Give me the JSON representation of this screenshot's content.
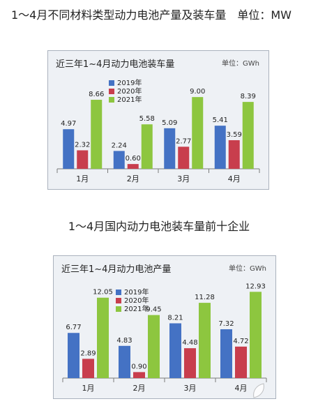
{
  "page": {
    "heading": "1～4月不同材料类型动力电池产量及装车量",
    "heading_unit": "单位：MW",
    "subheading": "1～4月国内动力电池装车量前十企业"
  },
  "colors": {
    "s2019": "#4472c4",
    "s2020": "#c83e4d",
    "s2021": "#8dc63f"
  },
  "chart_data": [
    {
      "type": "bar",
      "title": "近三年1~4月动力电池装车量",
      "unit": "单位：GWh",
      "categories": [
        "1月",
        "2月",
        "3月",
        "4月"
      ],
      "series": [
        {
          "name": "2019年",
          "values": [
            4.97,
            2.24,
            5.09,
            5.41
          ]
        },
        {
          "name": "2020年",
          "values": [
            2.32,
            0.6,
            2.77,
            3.59
          ]
        },
        {
          "name": "2021年",
          "values": [
            8.66,
            5.58,
            9.0,
            8.39
          ]
        }
      ],
      "legend": "top-left",
      "grid": false
    },
    {
      "type": "bar",
      "title": "近三年1~4月动力电池产量",
      "unit": "单位：GWh",
      "categories": [
        "1月",
        "2月",
        "3月",
        "4月"
      ],
      "series": [
        {
          "name": "2019年",
          "values": [
            6.77,
            4.83,
            8.21,
            7.32
          ]
        },
        {
          "name": "2020年",
          "values": [
            2.89,
            0.9,
            4.48,
            4.72
          ]
        },
        {
          "name": "2021年",
          "values": [
            12.05,
            9.45,
            11.28,
            12.93
          ]
        }
      ],
      "legend": "top-left",
      "grid": false
    }
  ]
}
